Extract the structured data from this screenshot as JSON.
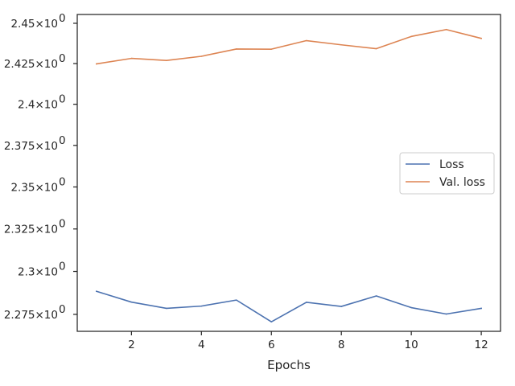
{
  "chart_data": {
    "type": "line",
    "xlabel": "Epochs",
    "ylabel": "",
    "title": "",
    "y_scale": "log",
    "xlim": [
      0.45,
      12.55
    ],
    "ylim": [
      2.2652,
      2.4555
    ],
    "x_ticks": [
      {
        "value": 2,
        "label": "2"
      },
      {
        "value": 4,
        "label": "4"
      },
      {
        "value": 6,
        "label": "6"
      },
      {
        "value": 8,
        "label": "8"
      },
      {
        "value": 10,
        "label": "10"
      },
      {
        "value": 12,
        "label": "12"
      }
    ],
    "y_ticks": [
      {
        "value": 2.275,
        "base": "2.275",
        "exp": "0"
      },
      {
        "value": 2.3,
        "base": "2.3",
        "exp": "0"
      },
      {
        "value": 2.325,
        "base": "2.325",
        "exp": "0"
      },
      {
        "value": 2.35,
        "base": "2.35",
        "exp": "0"
      },
      {
        "value": 2.375,
        "base": "2.375",
        "exp": "0"
      },
      {
        "value": 2.4,
        "base": "2.4",
        "exp": "0"
      },
      {
        "value": 2.425,
        "base": "2.425",
        "exp": "0"
      },
      {
        "value": 2.45,
        "base": "2.45",
        "exp": "0"
      }
    ],
    "x": [
      1,
      2,
      3,
      4,
      5,
      6,
      7,
      8,
      9,
      10,
      11,
      12
    ],
    "series": [
      {
        "name": "Loss",
        "color": "#4c72b0",
        "values": [
          2.2884,
          2.2821,
          2.2785,
          2.2798,
          2.2833,
          2.2707,
          2.282,
          2.2796,
          2.2857,
          2.2789,
          2.2752,
          2.2785
        ]
      },
      {
        "name": "Val. loss",
        "color": "#dd8452",
        "values": [
          2.4248,
          2.4282,
          2.4269,
          2.4295,
          2.434,
          2.4339,
          2.4392,
          2.4366,
          2.4342,
          2.4418,
          2.4461,
          2.4406
        ]
      }
    ],
    "grid": false,
    "legend_position": "center-right"
  }
}
